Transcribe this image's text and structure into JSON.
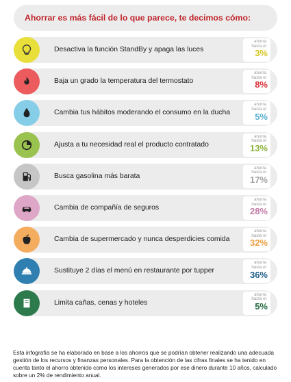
{
  "title": "Ahorrar es más fácil de lo que parece, te decimos cómo:",
  "badge_prefix": "ahorra hasta el",
  "items": [
    {
      "label": "Desactiva la función StandBy y apaga las luces",
      "percent": "3%",
      "color": "#e8df3a",
      "pct_color": "#d6c51e",
      "icon": "lightbulb-icon"
    },
    {
      "label": "Baja un grado la temperatura del termostato",
      "percent": "8%",
      "color": "#ec5b5d",
      "pct_color": "#d8343a",
      "icon": "flame-icon"
    },
    {
      "label": "Cambia tus hábitos moderando el consumo en la ducha",
      "percent": "5%",
      "color": "#86cde8",
      "pct_color": "#5aaed2",
      "icon": "water-drop-icon"
    },
    {
      "label": "Ajusta a tu necesidad real el producto contratado",
      "percent": "13%",
      "color": "#9ac24e",
      "pct_color": "#8cb23c",
      "icon": "pie-chart-icon"
    },
    {
      "label": "Busca gasolina más barata",
      "percent": "17%",
      "color": "#c6c6c6",
      "pct_color": "#a3a3a3",
      "icon": "fuel-pump-icon"
    },
    {
      "label": "Cambia de compañía de seguros",
      "percent": "28%",
      "color": "#dea6c7",
      "pct_color": "#c47fa8",
      "icon": "car-icon"
    },
    {
      "label": "Cambia de supermercado y nunca desperdicies comida",
      "percent": "32%",
      "color": "#f4ad5e",
      "pct_color": "#eaa04a",
      "icon": "apple-icon"
    },
    {
      "label": "Sustituye 2 días el menú en restaurante por tupper",
      "percent": "36%",
      "color": "#2f80b0",
      "pct_color": "#1f5f86",
      "icon": "food-tray-icon"
    },
    {
      "label": "Limita cañas, cenas y hoteles",
      "percent": "5%",
      "color": "#2d7a4d",
      "pct_color": "#256a42",
      "icon": "book-icon"
    }
  ],
  "footer": "Esta infografía se ha elaborado en base a los ahorros que se podrían obtener realizando una adecuada gestión de los recursos y finanzas personales. Para la obtención de las cifras finales se ha tenido en cuenta tanto el ahorro obtenido como los intereses generados por ese dinero durante 10 años, calculado sobre un 2% de rendimiento anual."
}
